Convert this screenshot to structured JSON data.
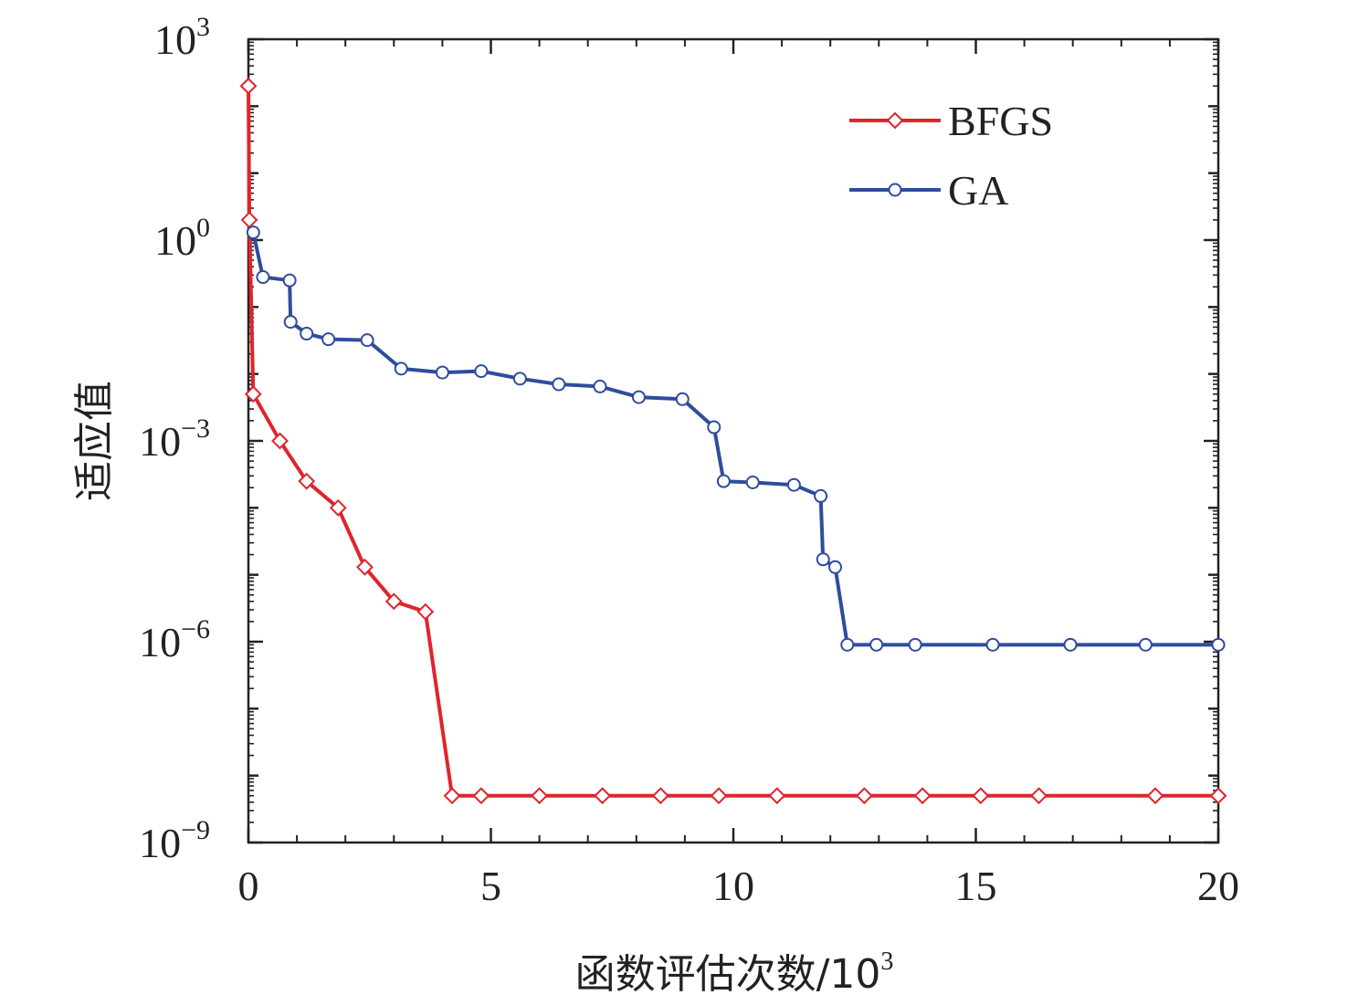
{
  "chart_data": {
    "type": "line",
    "xlabel": "函数评估次数/10",
    "xlabel_sup": "3",
    "ylabel": "适应值",
    "xlim": [
      0,
      20
    ],
    "x_ticks": [
      "0",
      "5",
      "10",
      "15",
      "20"
    ],
    "y_scale": "log",
    "ylim_exponent": [
      -9,
      3
    ],
    "y_ticks": [
      {
        "base": "10",
        "exp": "3"
      },
      {
        "base": "10",
        "exp": "0"
      },
      {
        "base": "10",
        "exp": "−3"
      },
      {
        "base": "10",
        "exp": "−6"
      },
      {
        "base": "10",
        "exp": "−9"
      }
    ],
    "grid": false,
    "legend_position": "top-right",
    "series": [
      {
        "name": "BFGS",
        "color": "#e0242c",
        "marker": "diamond",
        "x": [
          0.0,
          0.02,
          0.1,
          0.65,
          1.2,
          1.85,
          2.4,
          3.0,
          3.65,
          4.2,
          4.8,
          6.0,
          7.3,
          8.5,
          9.7,
          10.9,
          12.7,
          13.9,
          15.1,
          16.3,
          18.7,
          20.0
        ],
        "y": [
          200,
          2,
          0.005,
          0.001,
          0.00025,
          0.0001,
          1.3e-05,
          4e-06,
          2.8e-06,
          5e-09,
          5e-09,
          5e-09,
          5e-09,
          5e-09,
          5e-09,
          5e-09,
          5e-09,
          5e-09,
          5e-09,
          5e-09,
          5e-09,
          5e-09
        ]
      },
      {
        "name": "GA",
        "color": "#2e4d9b",
        "marker": "circle",
        "x": [
          0.1,
          0.3,
          0.85,
          0.87,
          1.2,
          1.65,
          2.45,
          3.15,
          4.0,
          4.8,
          5.6,
          6.4,
          7.25,
          8.05,
          8.95,
          9.6,
          9.8,
          10.4,
          11.25,
          11.8,
          11.85,
          12.1,
          12.35,
          12.95,
          13.75,
          15.35,
          16.95,
          18.5,
          20.0
        ],
        "y": [
          1.3,
          0.28,
          0.25,
          0.06,
          0.04,
          0.033,
          0.032,
          0.012,
          0.0105,
          0.011,
          0.0085,
          0.007,
          0.0065,
          0.0045,
          0.0042,
          0.0016,
          0.00025,
          0.00024,
          0.00022,
          0.00015,
          1.7e-05,
          1.3e-05,
          9e-07,
          9e-07,
          9e-07,
          9e-07,
          9e-07,
          9e-07,
          9e-07
        ]
      }
    ]
  }
}
